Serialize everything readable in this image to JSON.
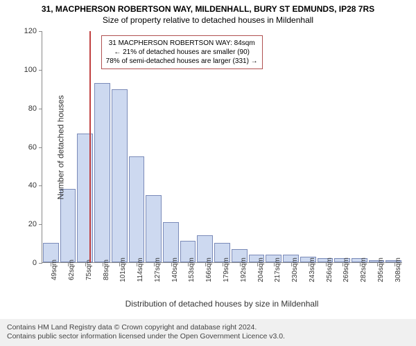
{
  "header": {
    "line1": "31, MACPHERSON ROBERTSON WAY, MILDENHALL, BURY ST EDMUNDS, IP28 7RS",
    "line2": "Size of property relative to detached houses in Mildenhall"
  },
  "chart": {
    "type": "histogram",
    "ylabel": "Number of detached houses",
    "xlabel": "Distribution of detached houses by size in Mildenhall",
    "ylim": [
      0,
      120
    ],
    "yticks": [
      0,
      20,
      40,
      60,
      80,
      100,
      120
    ],
    "xtick_labels": [
      "49sqm",
      "62sqm",
      "75sqm",
      "88sqm",
      "101sqm",
      "114sqm",
      "127sqm",
      "140sqm",
      "153sqm",
      "166sqm",
      "179sqm",
      "192sqm",
      "204sqm",
      "217sqm",
      "230sqm",
      "243sqm",
      "256sqm",
      "269sqm",
      "282sqm",
      "295sqm",
      "308sqm"
    ],
    "bar_values": [
      10,
      38,
      67,
      93,
      90,
      55,
      35,
      21,
      11,
      14,
      10,
      7,
      4,
      4,
      4,
      3,
      2,
      2,
      2,
      1,
      1
    ],
    "bar_fill": "#cdd9f0",
    "bar_border": "#7a8ab8",
    "background_color": "#ffffff",
    "marker_line": {
      "position_value": 84,
      "x_range": [
        49,
        314
      ],
      "color": "#c04040"
    },
    "info_box": {
      "border_color": "#b05050",
      "lines": [
        "31 MACPHERSON ROBERTSON WAY: 84sqm",
        "← 21% of detached houses are smaller (90)",
        "78% of semi-detached houses are larger (331) →"
      ]
    }
  },
  "footer": {
    "line1": "Contains HM Land Registry data © Crown copyright and database right 2024.",
    "line2": "Contains public sector information licensed under the Open Government Licence v3.0."
  }
}
